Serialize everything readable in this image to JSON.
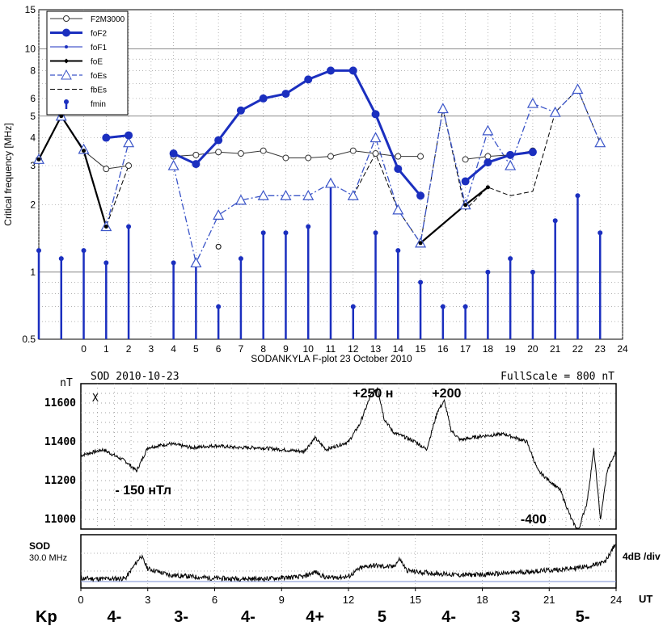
{
  "ionosonde": {
    "type": "line",
    "ylabel": "Critical frequency [MHz]",
    "footer": "SODANKYLA F-plot   23 October 2010",
    "yscale": "log",
    "ylim": [
      0.5,
      15
    ],
    "xlim": [
      -2,
      24
    ],
    "y_ticks": [
      {
        "v": 0.5,
        "t": "0.5"
      },
      {
        "v": 1,
        "t": "1"
      },
      {
        "v": 2,
        "t": "2"
      },
      {
        "v": 3,
        "t": "3"
      },
      {
        "v": 4,
        "t": "4"
      },
      {
        "v": 5,
        "t": "5"
      },
      {
        "v": 6,
        "t": "6"
      },
      {
        "v": 8,
        "t": "8"
      },
      {
        "v": 10,
        "t": "10"
      },
      {
        "v": 15,
        "t": "15"
      }
    ],
    "x_ticks": [
      "0",
      "1",
      "2",
      "3",
      "4",
      "5",
      "6",
      "7",
      "8",
      "9",
      "10",
      "11",
      "12",
      "13",
      "14",
      "15",
      "16",
      "17",
      "18",
      "19",
      "20",
      "21",
      "22",
      "23",
      "24"
    ],
    "legend": [
      {
        "name": "F2M3000",
        "style": "thin-open-circle"
      },
      {
        "name": "foF2",
        "style": "thick-filled-circle"
      },
      {
        "name": "foF1",
        "style": "thin-blue-dot"
      },
      {
        "name": "foE",
        "style": "black-diamond"
      },
      {
        "name": "foEs",
        "style": "dashed-triangle"
      },
      {
        "name": "fbEs",
        "style": "dashed-black"
      },
      {
        "name": "fmin",
        "style": "stem"
      }
    ],
    "series": {
      "F2M3000": [
        [
          -2,
          3.2
        ],
        [
          -1,
          5.0
        ],
        [
          0,
          3.5
        ],
        [
          1,
          2.9
        ],
        [
          2,
          3.0
        ],
        null,
        [
          4,
          3.3
        ],
        [
          5,
          3.35
        ],
        [
          6,
          3.45
        ],
        [
          7,
          3.4
        ],
        [
          8,
          3.5
        ],
        [
          9,
          3.25
        ],
        [
          10,
          3.25
        ],
        [
          11,
          3.3
        ],
        [
          12,
          3.5
        ],
        [
          13,
          3.4
        ],
        [
          14,
          3.3
        ],
        [
          15,
          3.3
        ],
        null,
        [
          17,
          3.2
        ],
        [
          18,
          3.3
        ],
        [
          19,
          3.35
        ],
        [
          20,
          3.5
        ]
      ],
      "foF2": [
        [
          1,
          4.0
        ],
        [
          2,
          4.1
        ],
        null,
        [
          4,
          3.4
        ],
        [
          5,
          3.05
        ],
        [
          6,
          3.9
        ],
        [
          7,
          5.3
        ],
        [
          8,
          6.0
        ],
        [
          9,
          6.3
        ],
        [
          10,
          7.3
        ],
        [
          11,
          8.0
        ],
        [
          12,
          8.0
        ],
        [
          13,
          5.1
        ],
        [
          14,
          2.9
        ],
        [
          15,
          2.2
        ],
        null,
        [
          17,
          2.55
        ],
        [
          18,
          3.1
        ],
        [
          19,
          3.35
        ],
        [
          20,
          3.45
        ]
      ],
      "foE": [
        [
          -2,
          3.2
        ],
        [
          -1,
          5.0
        ],
        [
          0,
          3.5
        ],
        [
          1,
          1.6
        ],
        null,
        [
          15,
          1.35
        ],
        [
          17,
          2.0
        ],
        [
          18,
          2.4
        ]
      ],
      "foEs": [
        [
          -2,
          3.2
        ],
        [
          -1,
          5.0
        ],
        [
          0,
          3.55
        ],
        [
          1,
          1.6
        ],
        [
          2,
          3.8
        ],
        null,
        [
          4,
          3.0
        ],
        [
          5,
          1.1
        ],
        [
          6,
          1.8
        ],
        [
          7,
          2.1
        ],
        [
          8,
          2.2
        ],
        [
          9,
          2.2
        ],
        [
          10,
          2.2
        ],
        [
          11,
          2.5
        ],
        [
          12,
          2.2
        ],
        [
          13,
          4.0
        ],
        [
          14,
          1.9
        ],
        [
          15,
          1.35
        ],
        [
          16,
          5.4
        ],
        [
          17,
          2.0
        ],
        [
          18,
          4.3
        ],
        [
          19,
          3.0
        ],
        [
          20,
          5.7
        ],
        [
          21,
          5.2
        ],
        [
          22,
          6.6
        ],
        [
          23,
          3.8
        ]
      ],
      "fbEs": [
        [
          0,
          3.5
        ],
        [
          1,
          1.6
        ],
        [
          2,
          3.0
        ],
        null,
        [
          12,
          2.2
        ],
        [
          13,
          3.4
        ],
        [
          14,
          1.9
        ],
        [
          15,
          1.35
        ],
        [
          16,
          5.4
        ],
        [
          17,
          1.9
        ],
        [
          18,
          2.4
        ],
        [
          19,
          2.2
        ],
        [
          20,
          2.3
        ],
        [
          21,
          5.2
        ],
        [
          22,
          6.6
        ],
        [
          23,
          3.8
        ]
      ],
      "foE_points": [
        [
          6,
          1.3
        ]
      ],
      "fmin": [
        [
          -2,
          1.25
        ],
        [
          -1,
          1.15
        ],
        [
          0,
          1.25
        ],
        [
          1,
          1.1
        ],
        [
          2,
          1.6
        ],
        [
          4,
          1.1
        ],
        [
          5,
          1.1
        ],
        [
          6,
          0.7
        ],
        [
          7,
          1.15
        ],
        [
          8,
          1.5
        ],
        [
          9,
          1.5
        ],
        [
          10,
          1.6
        ],
        [
          11,
          2.5
        ],
        [
          12,
          0.7
        ],
        [
          13,
          1.5
        ],
        [
          14,
          1.25
        ],
        [
          15,
          0.9
        ],
        [
          16,
          0.7
        ],
        [
          17,
          0.7
        ],
        [
          18,
          1.0
        ],
        [
          19,
          1.15
        ],
        [
          20,
          1.0
        ],
        [
          21,
          1.7
        ],
        [
          22,
          2.2
        ],
        [
          23,
          1.5
        ]
      ]
    }
  },
  "magnetogram": {
    "type": "line",
    "title": "SOD 2010-10-23",
    "fullscale": "FullScale = 800 nT",
    "unit": "nT",
    "component": "X",
    "ylim": [
      10950,
      11700
    ],
    "y_ticks": [
      "11600",
      "11400",
      "11200",
      "11000"
    ],
    "annotations": [
      {
        "text": "+250 н",
        "x": 13.1,
        "y": 11630
      },
      {
        "text": "+200",
        "x": 16.4,
        "y": 11630
      },
      {
        "text": "- 150 нТл",
        "x": 2.8,
        "y": 11130
      },
      {
        "text": "-400",
        "x": 20.3,
        "y": 10930
      }
    ],
    "x": [
      0,
      1,
      2,
      2.5,
      3,
      4,
      5,
      6,
      7,
      8,
      9,
      10,
      10.5,
      11,
      11.5,
      12,
      12.5,
      13,
      13.3,
      13.6,
      14,
      15,
      15.5,
      16,
      16.3,
      16.6,
      17,
      18,
      19,
      20,
      20.5,
      21,
      21.5,
      22,
      22.3,
      22.7,
      23,
      23.3,
      23.6,
      24
    ],
    "values": [
      11330,
      11360,
      11300,
      11250,
      11370,
      11390,
      11370,
      11380,
      11370,
      11370,
      11360,
      11350,
      11420,
      11360,
      11380,
      11400,
      11490,
      11640,
      11680,
      11520,
      11450,
      11400,
      11360,
      11560,
      11610,
      11460,
      11410,
      11430,
      11440,
      11400,
      11250,
      11200,
      11150,
      11000,
      10940,
      11090,
      11360,
      11000,
      11250,
      11350
    ]
  },
  "riometer": {
    "station": "SOD",
    "frequency": "30.0 MHz",
    "scale": "4dB /div",
    "x": [
      0,
      1,
      2,
      2.7,
      3,
      4,
      6,
      8,
      10,
      10.5,
      11,
      12,
      12.5,
      13,
      14,
      14.3,
      14.6,
      15,
      16,
      17,
      18,
      19,
      20,
      21,
      22,
      23,
      23.5,
      24
    ],
    "values": [
      0.1,
      0.08,
      0.1,
      0.8,
      0.4,
      0.2,
      0.1,
      0.08,
      0.15,
      0.3,
      0.12,
      0.15,
      0.4,
      0.5,
      0.45,
      0.7,
      0.35,
      0.3,
      0.25,
      0.2,
      0.22,
      0.25,
      0.3,
      0.35,
      0.4,
      0.5,
      0.6,
      1.2
    ]
  },
  "ut_axis": {
    "label": "UT",
    "ticks": [
      "0",
      "3",
      "6",
      "9",
      "12",
      "15",
      "18",
      "21",
      "24"
    ]
  },
  "kp": {
    "label": "Kp",
    "values": [
      {
        "t": 1.5,
        "v": "4-"
      },
      {
        "t": 4.5,
        "v": "3-"
      },
      {
        "t": 7.5,
        "v": "4-"
      },
      {
        "t": 10.5,
        "v": "4+"
      },
      {
        "t": 13.5,
        "v": "5"
      },
      {
        "t": 16.5,
        "v": "4-"
      },
      {
        "t": 19.5,
        "v": "3"
      },
      {
        "t": 22.5,
        "v": "5-"
      }
    ]
  }
}
